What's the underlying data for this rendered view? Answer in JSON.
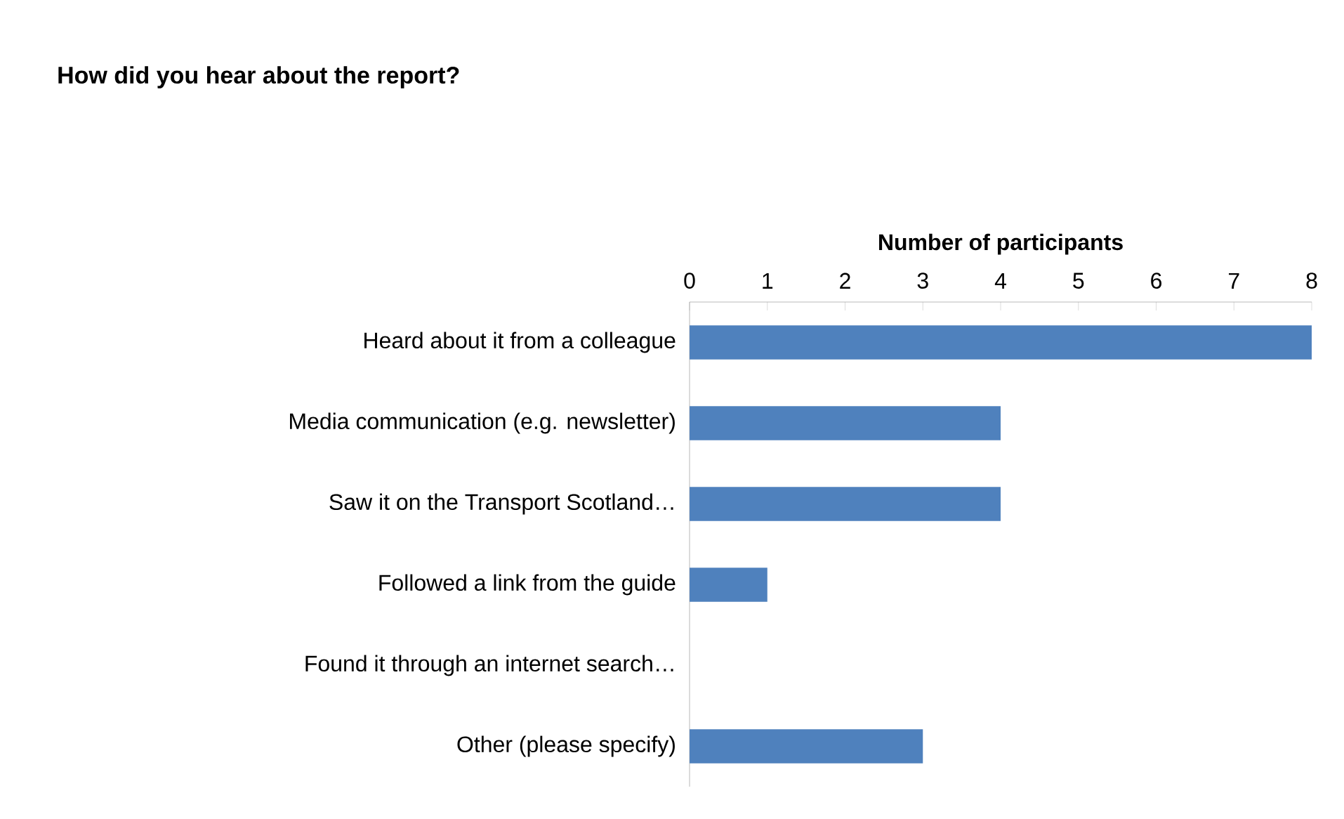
{
  "chart_data": {
    "type": "bar",
    "orientation": "horizontal",
    "title": "How did you hear about the report?",
    "xlabel": "Number of participants",
    "categories": [
      "Heard about it from a colleague",
      "Media communication (e.g. newsletter)",
      "Saw it on the Transport Scotland…",
      "Followed a link from the guide",
      "Found it through an internet search…",
      "Other (please specify)"
    ],
    "values": [
      8,
      4,
      4,
      1,
      0,
      3
    ],
    "color": "#4f81bd",
    "xlim": [
      0,
      8
    ],
    "xticks": [
      0,
      1,
      2,
      3,
      4,
      5,
      6,
      7,
      8
    ]
  }
}
